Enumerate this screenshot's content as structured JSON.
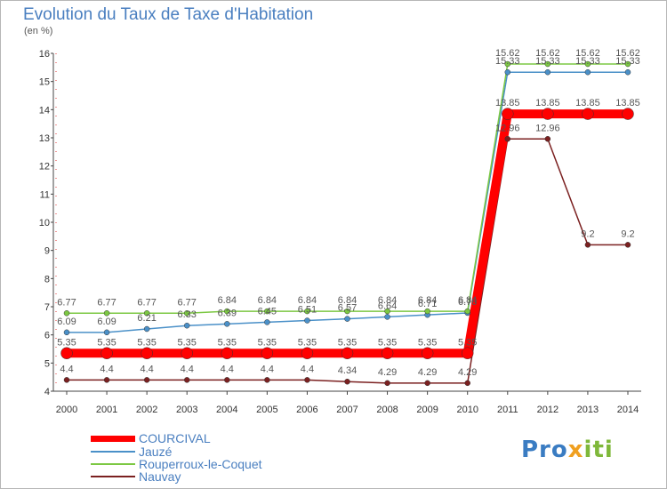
{
  "chart_data": {
    "type": "line",
    "title": "Evolution du Taux de Taxe d'Habitation",
    "subtitle": "(en %)",
    "x": [
      "2000",
      "2001",
      "2002",
      "2003",
      "2004",
      "2005",
      "2006",
      "2007",
      "2008",
      "2009",
      "2010",
      "2011",
      "2012",
      "2013",
      "2014"
    ],
    "ylim": [
      4,
      16
    ],
    "yticks": [
      "4",
      "5",
      "6",
      "7",
      "8",
      "9",
      "10",
      "11",
      "12",
      "13",
      "14",
      "15",
      "16"
    ],
    "grid": false,
    "series": [
      {
        "name": "COURCIVAL",
        "color": "#ff0000",
        "values": [
          5.35,
          5.35,
          5.35,
          5.35,
          5.35,
          5.35,
          5.35,
          5.35,
          5.35,
          5.35,
          5.35,
          13.85,
          13.85,
          13.85,
          13.85
        ],
        "labels": [
          "5.35",
          "5.35",
          "5.35",
          "5.35",
          "5.35",
          "5.35",
          "5.35",
          "5.35",
          "5.35",
          "5.35",
          "5.35",
          "13.85",
          "13.85",
          "13.85",
          "13.85"
        ]
      },
      {
        "name": "Jauzé",
        "color": "#4a90c8",
        "values": [
          6.09,
          6.09,
          6.21,
          6.33,
          6.39,
          6.45,
          6.51,
          6.57,
          6.64,
          6.71,
          6.78,
          15.33,
          15.33,
          15.33,
          15.33
        ],
        "labels": [
          "6.09",
          "6.09",
          "6.21",
          "6.33",
          "6.39",
          "6.45",
          "6.51",
          "6.57",
          "6.64",
          "6.71",
          "6.78",
          "15.33",
          "15.33",
          "15.33",
          "15.33"
        ]
      },
      {
        "name": "Rouperroux-le-Coquet",
        "color": "#7cc843",
        "values": [
          6.77,
          6.77,
          6.77,
          6.77,
          6.84,
          6.84,
          6.84,
          6.84,
          6.84,
          6.84,
          6.84,
          15.62,
          15.62,
          15.62,
          15.62
        ],
        "labels": [
          "6.77",
          "6.77",
          "6.77",
          "6.77",
          "6.84",
          "6.84",
          "6.84",
          "6.84",
          "6.84",
          "6.84",
          "6.84",
          "15.62",
          "15.62",
          "15.62",
          "15.62"
        ]
      },
      {
        "name": "Nauvay",
        "color": "#7b2020",
        "values": [
          4.4,
          4.4,
          4.4,
          4.4,
          4.4,
          4.4,
          4.4,
          4.34,
          4.29,
          4.29,
          4.29,
          12.96,
          12.96,
          9.2,
          9.2
        ],
        "labels": [
          "4.4",
          "4.4",
          "4.4",
          "4.4",
          "4.4",
          "4.4",
          "4.4",
          "4.34",
          "4.29",
          "4.29",
          "4.29",
          "12.96",
          "12.96",
          "9.2",
          "9.2"
        ]
      }
    ],
    "legend_position": "bottom-left"
  },
  "branding": {
    "logo_parts": [
      "Pro",
      "x",
      "iti"
    ]
  }
}
